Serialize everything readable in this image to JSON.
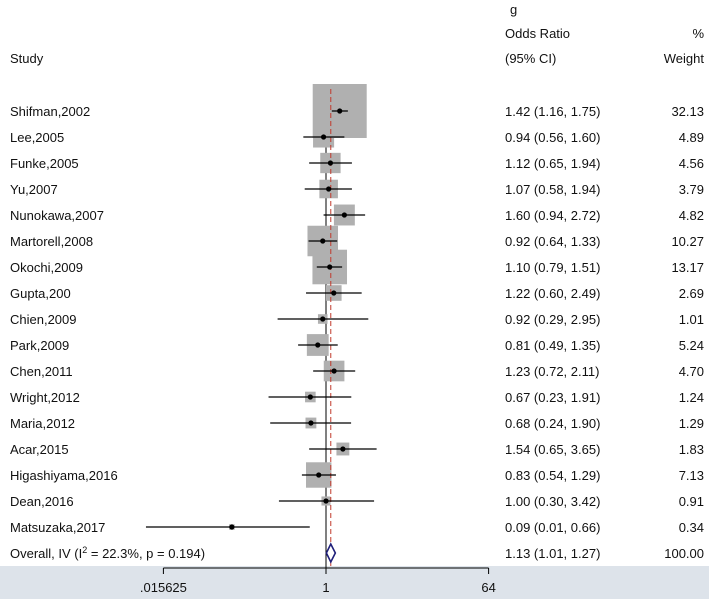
{
  "header": {
    "title_fragment": "g",
    "study_label": "Study",
    "or_label_1": "Odds Ratio",
    "or_label_2": "(95% CI)",
    "weight_label_1": "%",
    "weight_label_2": "Weight"
  },
  "chart_data": {
    "type": "forest",
    "x_scale": "log",
    "x_ticks": [
      0.015625,
      1,
      64
    ],
    "x_tick_labels": [
      ".015625",
      "1",
      "64"
    ],
    "null_line": 1,
    "overall_line": 1.13,
    "studies": [
      {
        "label": "Shifman,2002",
        "or": 1.42,
        "lo": 1.16,
        "hi": 1.75,
        "ci_text": "1.42 (1.16, 1.75)",
        "weight": 32.13,
        "weight_text": "32.13"
      },
      {
        "label": "Lee,2005",
        "or": 0.94,
        "lo": 0.56,
        "hi": 1.6,
        "ci_text": "0.94 (0.56, 1.60)",
        "weight": 4.89,
        "weight_text": "4.89"
      },
      {
        "label": "Funke,2005",
        "or": 1.12,
        "lo": 0.65,
        "hi": 1.94,
        "ci_text": "1.12 (0.65, 1.94)",
        "weight": 4.56,
        "weight_text": "4.56"
      },
      {
        "label": "Yu,2007",
        "or": 1.07,
        "lo": 0.58,
        "hi": 1.94,
        "ci_text": "1.07 (0.58, 1.94)",
        "weight": 3.79,
        "weight_text": "3.79"
      },
      {
        "label": "Nunokawa,2007",
        "or": 1.6,
        "lo": 0.94,
        "hi": 2.72,
        "ci_text": "1.60 (0.94, 2.72)",
        "weight": 4.82,
        "weight_text": "4.82"
      },
      {
        "label": "Martorell,2008",
        "or": 0.92,
        "lo": 0.64,
        "hi": 1.33,
        "ci_text": "0.92 (0.64, 1.33)",
        "weight": 10.27,
        "weight_text": "10.27"
      },
      {
        "label": "Okochi,2009",
        "or": 1.1,
        "lo": 0.79,
        "hi": 1.51,
        "ci_text": "1.10 (0.79, 1.51)",
        "weight": 13.17,
        "weight_text": "13.17"
      },
      {
        "label": "Gupta,200",
        "or": 1.22,
        "lo": 0.6,
        "hi": 2.49,
        "ci_text": "1.22 (0.60, 2.49)",
        "weight": 2.69,
        "weight_text": "2.69"
      },
      {
        "label": "Chien,2009",
        "or": 0.92,
        "lo": 0.29,
        "hi": 2.95,
        "ci_text": "0.92 (0.29, 2.95)",
        "weight": 1.01,
        "weight_text": "1.01"
      },
      {
        "label": "Park,2009",
        "or": 0.81,
        "lo": 0.49,
        "hi": 1.35,
        "ci_text": "0.81 (0.49, 1.35)",
        "weight": 5.24,
        "weight_text": "5.24"
      },
      {
        "label": "Chen,2011",
        "or": 1.23,
        "lo": 0.72,
        "hi": 2.11,
        "ci_text": "1.23 (0.72, 2.11)",
        "weight": 4.7,
        "weight_text": "4.70"
      },
      {
        "label": "Wright,2012",
        "or": 0.67,
        "lo": 0.23,
        "hi": 1.91,
        "ci_text": "0.67 (0.23, 1.91)",
        "weight": 1.24,
        "weight_text": "1.24"
      },
      {
        "label": "Maria,2012",
        "or": 0.68,
        "lo": 0.24,
        "hi": 1.9,
        "ci_text": "0.68 (0.24, 1.90)",
        "weight": 1.29,
        "weight_text": "1.29"
      },
      {
        "label": "Acar,2015",
        "or": 1.54,
        "lo": 0.65,
        "hi": 3.65,
        "ci_text": "1.54 (0.65, 3.65)",
        "weight": 1.83,
        "weight_text": "1.83"
      },
      {
        "label": "Higashiyama,2016",
        "or": 0.83,
        "lo": 0.54,
        "hi": 1.29,
        "ci_text": "0.83 (0.54, 1.29)",
        "weight": 7.13,
        "weight_text": "7.13"
      },
      {
        "label": "Dean,2016",
        "or": 1.0,
        "lo": 0.3,
        "hi": 3.42,
        "ci_text": "1.00 (0.30, 3.42)",
        "weight": 0.91,
        "weight_text": "0.91"
      },
      {
        "label": "Matsuzaka,2017",
        "or": 0.09,
        "lo": 0.01,
        "hi": 0.66,
        "ci_text": "0.09 (0.01, 0.66)",
        "weight": 0.34,
        "weight_text": "0.34"
      }
    ],
    "overall": {
      "label_prefix": "Overall, IV (I",
      "label_sup": "2",
      "label_suffix": " = 22.3%, p = 0.194)",
      "or": 1.13,
      "lo": 1.01,
      "hi": 1.27,
      "ci_text": "1.13 (1.01, 1.27)",
      "weight_text": "100.00"
    },
    "colors": {
      "box": "#b0b0b0",
      "diamond": "#1f1f7a",
      "overall_line": "#c0392b",
      "axis_band": "#dde3ea"
    }
  }
}
